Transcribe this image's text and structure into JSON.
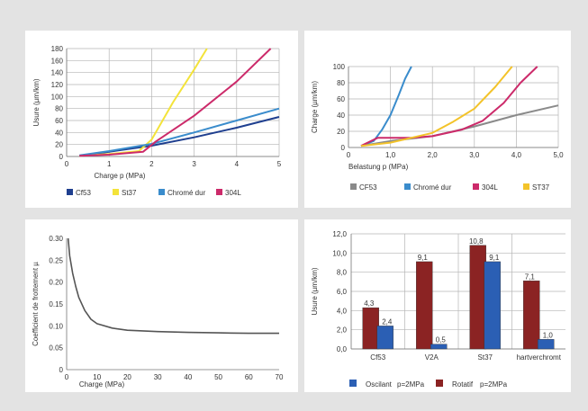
{
  "chart_data": [
    {
      "type": "line",
      "xlabel": "Charge p (MPa)",
      "ylabel": "Usure (µm/km)",
      "xlim": [
        0,
        5
      ],
      "ylim": [
        0,
        180
      ],
      "xticks": [
        0,
        1,
        2,
        3,
        4,
        5
      ],
      "yticks": [
        0,
        20,
        40,
        60,
        80,
        100,
        120,
        140,
        160,
        180
      ],
      "grid": true,
      "legend": "bottom",
      "series": [
        {
          "name": "Cf53",
          "color": "#1f3f8f",
          "points": [
            [
              0.3,
              1
            ],
            [
              1,
              8
            ],
            [
              2,
              18
            ],
            [
              3,
              32
            ],
            [
              4,
              48
            ],
            [
              5,
              66
            ]
          ]
        },
        {
          "name": "St37",
          "color": "#f3e33a",
          "points": [
            [
              0.3,
              1
            ],
            [
              1,
              4
            ],
            [
              1.7,
              9
            ],
            [
              2.0,
              28
            ],
            [
              2.5,
              90
            ],
            [
              3.0,
              145
            ],
            [
              3.3,
              180
            ]
          ]
        },
        {
          "name": "Chromé dur",
          "color": "#3a8ccc",
          "points": [
            [
              0.3,
              2
            ],
            [
              1,
              9
            ],
            [
              2,
              21
            ],
            [
              3,
              40
            ],
            [
              4,
              60
            ],
            [
              5,
              80
            ]
          ]
        },
        {
          "name": "304L",
          "color": "#cc2a6a",
          "points": [
            [
              0.3,
              1
            ],
            [
              1,
              3
            ],
            [
              1.8,
              8
            ],
            [
              2.1,
              25
            ],
            [
              3,
              68
            ],
            [
              4,
              125
            ],
            [
              4.8,
              180
            ]
          ]
        }
      ]
    },
    {
      "type": "line",
      "xlabel": "Belastung p (MPa)",
      "ylabel": "Charge (µm/km)",
      "xlim": [
        0,
        5
      ],
      "ylim": [
        0,
        100
      ],
      "xticks": [
        "0",
        "1,0",
        "2,0",
        "3,0",
        "4,0",
        "5,0"
      ],
      "yticks": [
        0,
        20,
        40,
        60,
        80,
        100
      ],
      "grid": true,
      "legend": "bottom",
      "series": [
        {
          "name": "CF53",
          "color": "#8a8a8a",
          "points": [
            [
              0.3,
              2
            ],
            [
              1,
              8
            ],
            [
              2,
              14
            ],
            [
              3,
              26
            ],
            [
              4,
              40
            ],
            [
              5,
              52
            ]
          ]
        },
        {
          "name": "Chromé dur",
          "color": "#3a8ccc",
          "points": [
            [
              0.3,
              2
            ],
            [
              0.6,
              8
            ],
            [
              0.8,
              22
            ],
            [
              1.0,
              40
            ],
            [
              1.2,
              65
            ],
            [
              1.35,
              85
            ],
            [
              1.5,
              100
            ]
          ]
        },
        {
          "name": "304L",
          "color": "#cc2a6a",
          "points": [
            [
              0.3,
              2
            ],
            [
              0.7,
              12
            ],
            [
              1.5,
              12
            ],
            [
              2,
              14
            ],
            [
              2.7,
              22
            ],
            [
              3.2,
              33
            ],
            [
              3.7,
              55
            ],
            [
              4.1,
              80
            ],
            [
              4.5,
              100
            ]
          ]
        },
        {
          "name": "ST37",
          "color": "#f3c32a",
          "points": [
            [
              0.3,
              2
            ],
            [
              1,
              6
            ],
            [
              2,
              18
            ],
            [
              2.5,
              32
            ],
            [
              3,
              48
            ],
            [
              3.5,
              75
            ],
            [
              3.9,
              100
            ]
          ]
        }
      ]
    },
    {
      "type": "line",
      "xlabel": "Charge (MPa)",
      "ylabel": "Coefficient de frottement µ",
      "xlim": [
        0,
        70
      ],
      "ylim": [
        0,
        0.3
      ],
      "xticks": [
        0,
        10,
        20,
        30,
        40,
        50,
        60,
        70
      ],
      "yticks": [
        "0",
        "0.05",
        "0.10",
        "0.15",
        "0.20",
        "0.25",
        "0.30"
      ],
      "grid": false,
      "series": [
        {
          "color": "#555555",
          "points": [
            [
              0.5,
              0.3
            ],
            [
              1,
              0.26
            ],
            [
              2,
              0.22
            ],
            [
              3,
              0.19
            ],
            [
              4,
              0.165
            ],
            [
              6,
              0.135
            ],
            [
              8,
              0.115
            ],
            [
              10,
              0.105
            ],
            [
              15,
              0.095
            ],
            [
              20,
              0.09
            ],
            [
              30,
              0.087
            ],
            [
              40,
              0.085
            ],
            [
              50,
              0.084
            ],
            [
              60,
              0.083
            ],
            [
              70,
              0.083
            ]
          ]
        }
      ]
    },
    {
      "type": "bar",
      "ylabel": "Usure (µm/km)",
      "ylim": [
        0,
        12
      ],
      "yticks": [
        "0,0",
        "2,0",
        "4,0",
        "6,0",
        "8,0",
        "10,0",
        "12,0"
      ],
      "categories": [
        "Cf53",
        "V2A",
        "St37",
        "hartverchromt"
      ],
      "grid": true,
      "legend": "bottom",
      "series": [
        {
          "name": "Oscilant",
          "note": "p=2MPa",
          "color": "#2b5fb4",
          "values": [
            2.4,
            0.5,
            9.1,
            1.0
          ],
          "labels": [
            "2,4",
            "0,5",
            "9,1",
            "1,0"
          ]
        },
        {
          "name": "Rotatif",
          "note": "p=2MPa",
          "color": "#8b2323",
          "values": [
            4.3,
            9.1,
            10.8,
            7.1
          ],
          "labels": [
            "4,3",
            "9,1",
            "10,8",
            "7,1"
          ]
        }
      ]
    }
  ]
}
